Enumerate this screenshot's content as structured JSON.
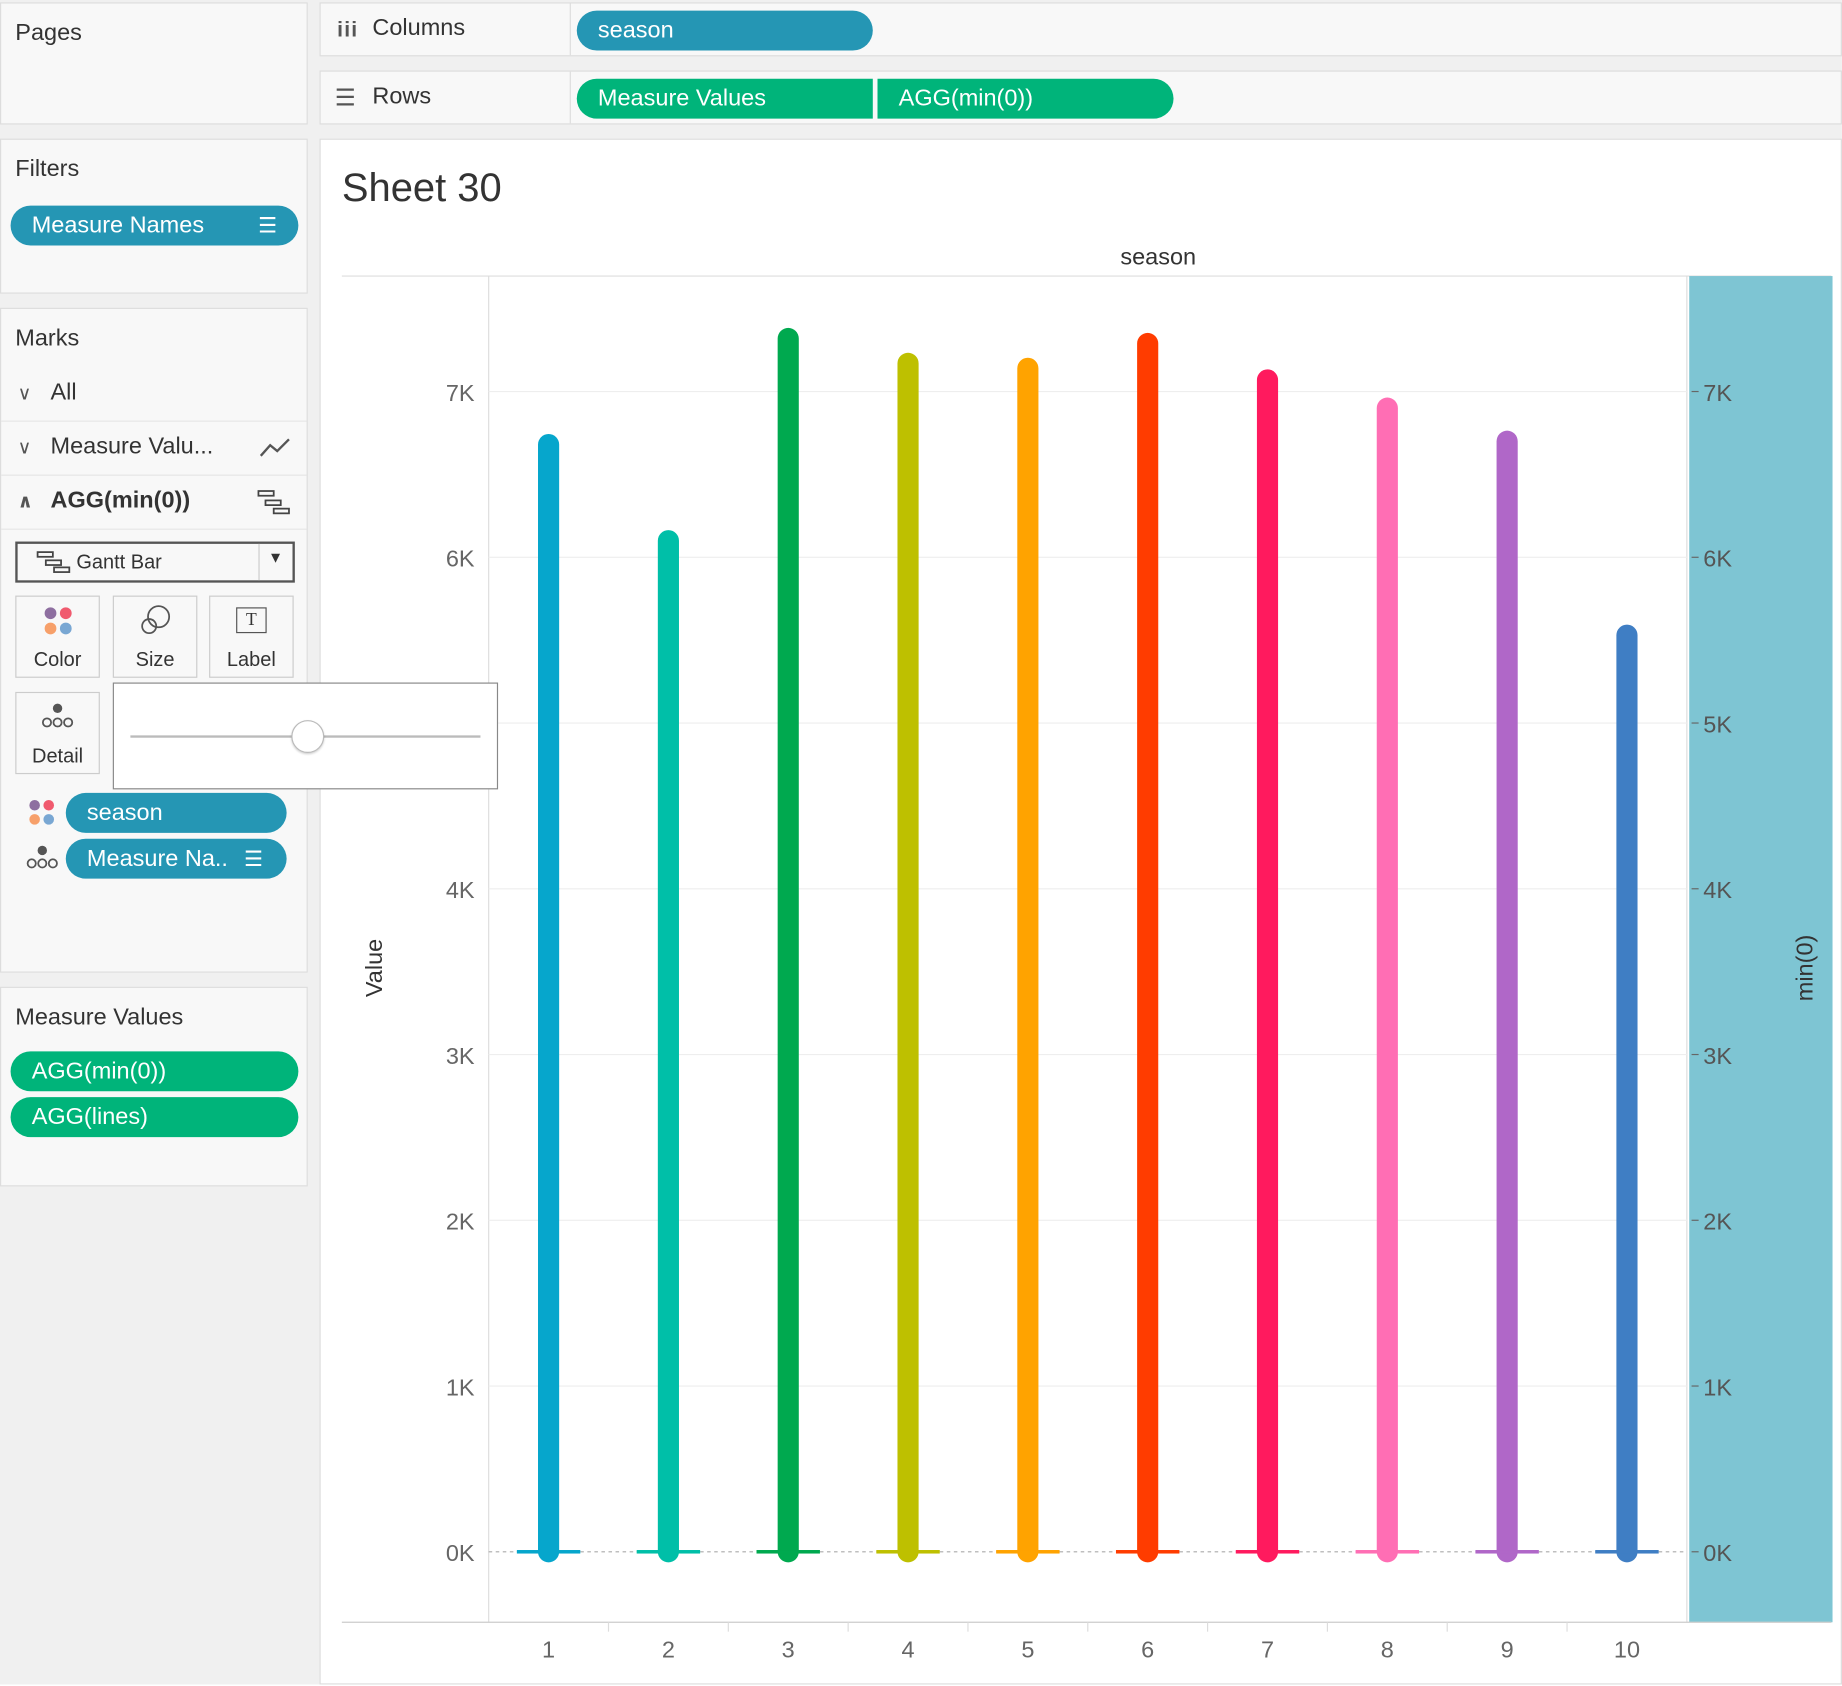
{
  "pages": {
    "title": "Pages"
  },
  "shelves": {
    "columns": {
      "label": "Columns",
      "pills": [
        "season"
      ]
    },
    "rows": {
      "label": "Rows",
      "pills": [
        "Measure Values",
        "AGG(min(0))"
      ]
    }
  },
  "filters": {
    "title": "Filters",
    "pills": [
      "Measure Names"
    ]
  },
  "marks": {
    "title": "Marks",
    "rows": [
      "All",
      "Measure Valu...",
      "AGG(min(0))"
    ],
    "mark_type": "Gantt Bar",
    "cards": [
      "Color",
      "Size",
      "Label",
      "Detail"
    ],
    "size_slider_value": 0.5,
    "fields": [
      "season",
      "Measure Na.."
    ]
  },
  "measure_values": {
    "title": "Measure Values",
    "pills": [
      "AGG(min(0))",
      "AGG(lines)"
    ]
  },
  "sheet": {
    "title": "Sheet 30"
  },
  "chart_data": {
    "type": "bar",
    "title": "Sheet 30",
    "column_header": "season",
    "xlabel": "",
    "ylabel": "Value",
    "y2label": "min(0)",
    "categories": [
      "1",
      "2",
      "3",
      "4",
      "5",
      "6",
      "7",
      "8",
      "9",
      "10"
    ],
    "values": [
      6680,
      6100,
      7320,
      7170,
      7140,
      7290,
      7070,
      6900,
      6700,
      5530
    ],
    "secondary_values": [
      0,
      0,
      0,
      0,
      0,
      0,
      0,
      0,
      0,
      0
    ],
    "colors": [
      "#06a6cc",
      "#00bfa8",
      "#00a94f",
      "#bec000",
      "#ffa300",
      "#ff3c00",
      "#ff1a5e",
      "#ff6eb4",
      "#b067c8",
      "#3f7ec4"
    ],
    "y_ticks": [
      "0K",
      "1K",
      "2K",
      "3K",
      "4K",
      "5K",
      "6K",
      "7K"
    ],
    "ylim": [
      0,
      7000
    ],
    "grid": true,
    "y2_band_color": "#7ec5d3"
  }
}
